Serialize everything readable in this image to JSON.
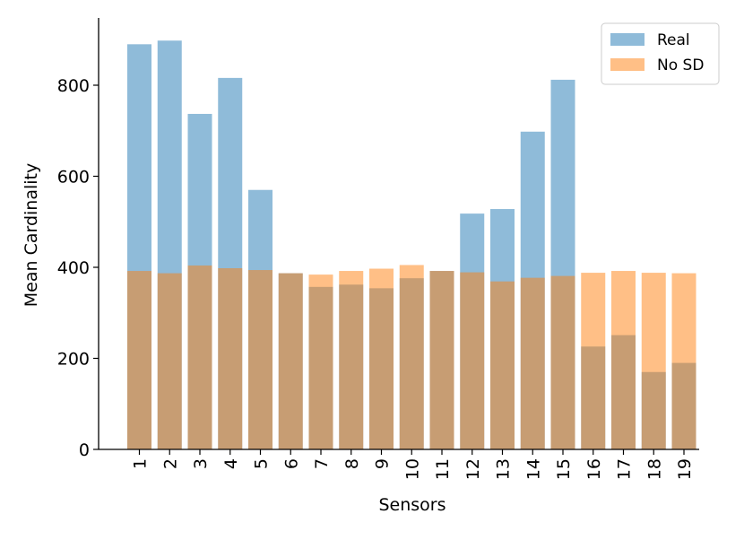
{
  "chart_data": {
    "type": "bar",
    "xlabel": "Sensors",
    "ylabel": "Mean Cardinality",
    "categories": [
      "1",
      "2",
      "3",
      "4",
      "5",
      "6",
      "7",
      "8",
      "9",
      "10",
      "11",
      "12",
      "13",
      "14",
      "15",
      "16",
      "17",
      "18",
      "19"
    ],
    "series": [
      {
        "name": "Real",
        "color": "#1f77b4",
        "values": [
          890,
          898,
          737,
          816,
          570,
          387,
          357,
          362,
          354,
          376,
          392,
          518,
          528,
          698,
          812,
          226,
          251,
          170,
          190
        ]
      },
      {
        "name": "No SD",
        "color": "#ff7f0e",
        "values": [
          392,
          387,
          404,
          398,
          394,
          387,
          384,
          392,
          397,
          405,
          392,
          389,
          369,
          377,
          381,
          388,
          392,
          388,
          387
        ]
      }
    ],
    "ylim": [
      0,
      940
    ],
    "yticks": [
      0,
      200,
      400,
      600,
      800
    ],
    "legend_position": "top-right",
    "grid": false
  }
}
